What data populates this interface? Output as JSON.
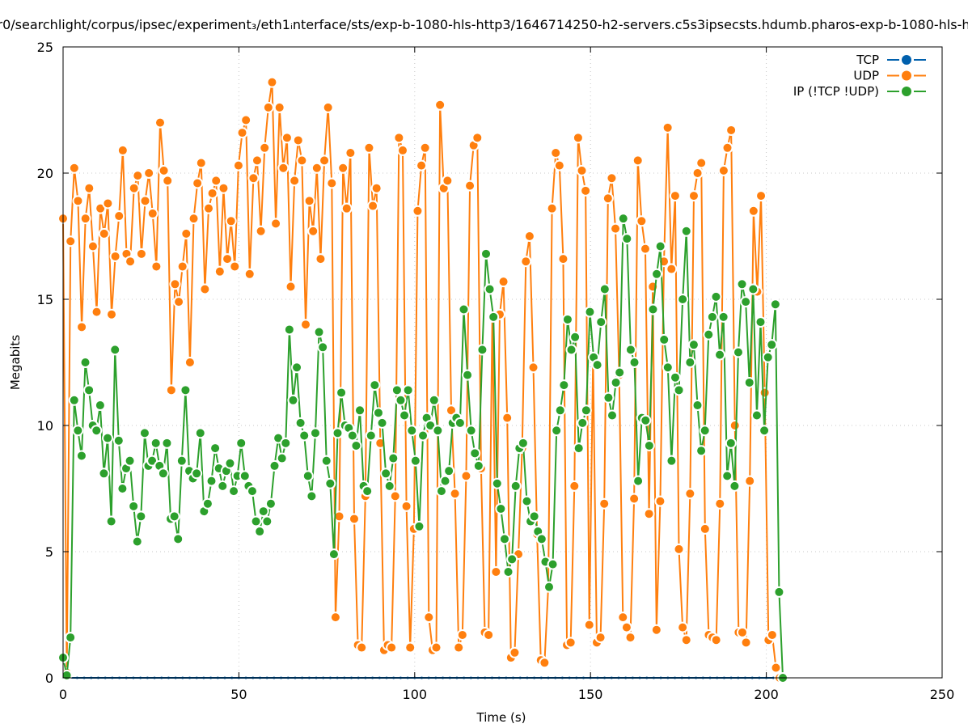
{
  "chart_data": {
    "type": "line",
    "title": "r0/searchlight/corpus/ipsec/experiment₃/eth1ᵢnterface/sts/exp-b-1080-hls-http3/1646714250-h2-servers.c5s3ipsecsts.hdumb.pharos-exp-b-1080-hls-h",
    "xlabel": "Time (s)",
    "ylabel": "Megabits",
    "xlim": [
      0,
      250
    ],
    "ylim": [
      0,
      25
    ],
    "xticks": [
      "0",
      "50",
      "100",
      "150",
      "200",
      "250"
    ],
    "yticks": [
      "0",
      "5",
      "10",
      "15",
      "20",
      "25"
    ],
    "grid": true,
    "legend_position": "top-right",
    "series": [
      {
        "name": "TCP",
        "color": "#0060ad",
        "t_start": 0,
        "t_end": 204,
        "values": [
          0,
          0,
          0,
          0,
          0,
          0,
          0,
          0,
          0,
          0,
          0,
          0,
          0,
          0,
          0,
          0,
          0,
          0,
          0,
          0,
          0,
          0,
          0,
          0,
          0,
          0,
          0,
          0,
          0,
          0,
          0,
          0,
          0,
          0,
          0,
          0,
          0,
          0,
          0,
          0,
          0,
          0,
          0,
          0,
          0,
          0,
          0,
          0,
          0,
          0,
          0,
          0,
          0,
          0,
          0,
          0,
          0,
          0,
          0,
          0,
          0,
          0,
          0,
          0,
          0,
          0,
          0,
          0,
          0,
          0,
          0,
          0,
          0,
          0,
          0,
          0,
          0,
          0,
          0,
          0,
          0,
          0,
          0,
          0,
          0,
          0,
          0,
          0,
          0,
          0,
          0,
          0,
          0,
          0,
          0,
          0,
          0,
          0,
          0,
          0,
          0,
          0,
          0
        ]
      },
      {
        "name": "UDP",
        "color": "#ff7f0e",
        "t_start": 0,
        "t_end": 203.8,
        "values": [
          18.2,
          0.2,
          17.3,
          20.2,
          18.9,
          13.9,
          18.2,
          19.4,
          17.1,
          14.5,
          18.6,
          17.6,
          18.8,
          14.4,
          16.7,
          18.3,
          20.9,
          16.8,
          16.5,
          19.4,
          19.9,
          16.8,
          18.9,
          20.0,
          18.4,
          16.3,
          22.0,
          20.1,
          19.7,
          11.4,
          15.6,
          14.9,
          16.3,
          17.6,
          12.5,
          18.2,
          19.6,
          20.4,
          15.4,
          18.6,
          19.2,
          19.7,
          16.1,
          19.4,
          16.6,
          18.1,
          16.3,
          20.3,
          21.6,
          22.1,
          16.0,
          19.8,
          20.5,
          17.7,
          21.0,
          22.6,
          23.6,
          18.0,
          22.6,
          20.2,
          21.4,
          15.5,
          19.7,
          21.3,
          20.5,
          14.0,
          18.9,
          17.7,
          20.2,
          16.6,
          20.5,
          22.6,
          19.6,
          2.4,
          6.4,
          20.2,
          18.6,
          20.8,
          6.3,
          1.3,
          1.2,
          7.2,
          21.0,
          18.7,
          19.4,
          9.3,
          1.1,
          1.3,
          1.2,
          7.2,
          21.4,
          20.9,
          6.8,
          1.2,
          5.9,
          18.5,
          20.3,
          21.0,
          2.4,
          1.1,
          1.2,
          22.7,
          19.4,
          19.7,
          10.6,
          7.3,
          1.2,
          1.7,
          8.0,
          19.5,
          21.1,
          21.4,
          8.3,
          1.8,
          1.7,
          14.3,
          4.2,
          14.4,
          15.7,
          10.3,
          0.8,
          1.0,
          4.9,
          9.1,
          16.5,
          17.5,
          12.3,
          5.7,
          0.7,
          0.6,
          3.6,
          18.6,
          20.8,
          20.3,
          16.6,
          1.3,
          1.4,
          7.6,
          21.4,
          20.1,
          19.3,
          2.1,
          12.7,
          1.4,
          1.6,
          6.9,
          19.0,
          19.8,
          17.8,
          12.0,
          2.4,
          2.0,
          1.6,
          7.1,
          20.5,
          18.1,
          17.0,
          6.5,
          15.5,
          1.9,
          7.0,
          16.5,
          21.8,
          16.2,
          19.1,
          5.1,
          2.0,
          1.5,
          7.3,
          19.1,
          20.0,
          20.4,
          5.9,
          1.7,
          1.6,
          1.5,
          6.9,
          20.1,
          21.0,
          21.7,
          10.0,
          1.8,
          1.8,
          1.4,
          7.8,
          18.5,
          15.3,
          19.1,
          11.3,
          1.5,
          1.7,
          0.4,
          0.0
        ]
      },
      {
        "name": "IP (!TCP  !UDP)",
        "color": "#2ca02c",
        "t_start": 0,
        "t_end": 204.7,
        "values": [
          0.8,
          0.1,
          1.6,
          11.0,
          9.8,
          8.8,
          12.5,
          11.4,
          10.0,
          9.8,
          10.8,
          8.1,
          9.5,
          6.2,
          13.0,
          9.4,
          7.5,
          8.3,
          8.6,
          6.8,
          5.4,
          6.4,
          9.7,
          8.4,
          8.6,
          9.3,
          8.4,
          8.1,
          9.3,
          6.3,
          6.4,
          5.5,
          8.6,
          11.4,
          8.2,
          7.9,
          8.1,
          9.7,
          6.6,
          6.9,
          7.8,
          9.1,
          8.3,
          7.6,
          8.2,
          8.5,
          7.4,
          8.0,
          9.3,
          8.0,
          7.6,
          7.4,
          6.2,
          5.8,
          6.6,
          6.2,
          6.9,
          8.4,
          9.5,
          8.7,
          9.3,
          13.8,
          11.0,
          12.3,
          10.1,
          9.6,
          8.0,
          7.2,
          9.7,
          13.7,
          13.1,
          8.6,
          7.7,
          4.9,
          9.7,
          11.3,
          10.0,
          9.9,
          9.6,
          9.2,
          10.6,
          7.6,
          7.4,
          9.6,
          11.6,
          10.5,
          10.1,
          8.1,
          7.6,
          8.7,
          11.4,
          11.0,
          10.4,
          11.4,
          9.8,
          8.6,
          6.0,
          9.6,
          10.3,
          10.0,
          11.0,
          9.8,
          7.4,
          7.8,
          8.2,
          10.1,
          10.3,
          10.1,
          14.6,
          12.0,
          9.8,
          8.9,
          8.4,
          13.0,
          16.8,
          15.4,
          14.3,
          7.7,
          6.7,
          5.5,
          4.2,
          4.7,
          7.6,
          9.1,
          9.3,
          7.0,
          6.2,
          6.4,
          5.8,
          5.5,
          4.6,
          3.6,
          4.5,
          9.8,
          10.6,
          11.6,
          14.2,
          13.0,
          13.5,
          9.1,
          10.1,
          10.6,
          14.5,
          12.7,
          12.4,
          14.1,
          15.4,
          11.1,
          10.4,
          11.7,
          12.1,
          18.2,
          17.4,
          13.0,
          12.5,
          7.8,
          10.3,
          10.2,
          9.2,
          14.6,
          16.0,
          17.1,
          13.4,
          12.3,
          8.6,
          11.9,
          11.4,
          15.0,
          17.7,
          12.5,
          13.2,
          10.8,
          9.0,
          9.8,
          13.6,
          14.3,
          15.1,
          12.8,
          14.3,
          8.0,
          9.3,
          7.6,
          12.9,
          15.6,
          14.9,
          11.7,
          15.4,
          10.4,
          14.1,
          9.8,
          12.7,
          13.2,
          14.8,
          3.4,
          0.0
        ]
      }
    ]
  }
}
